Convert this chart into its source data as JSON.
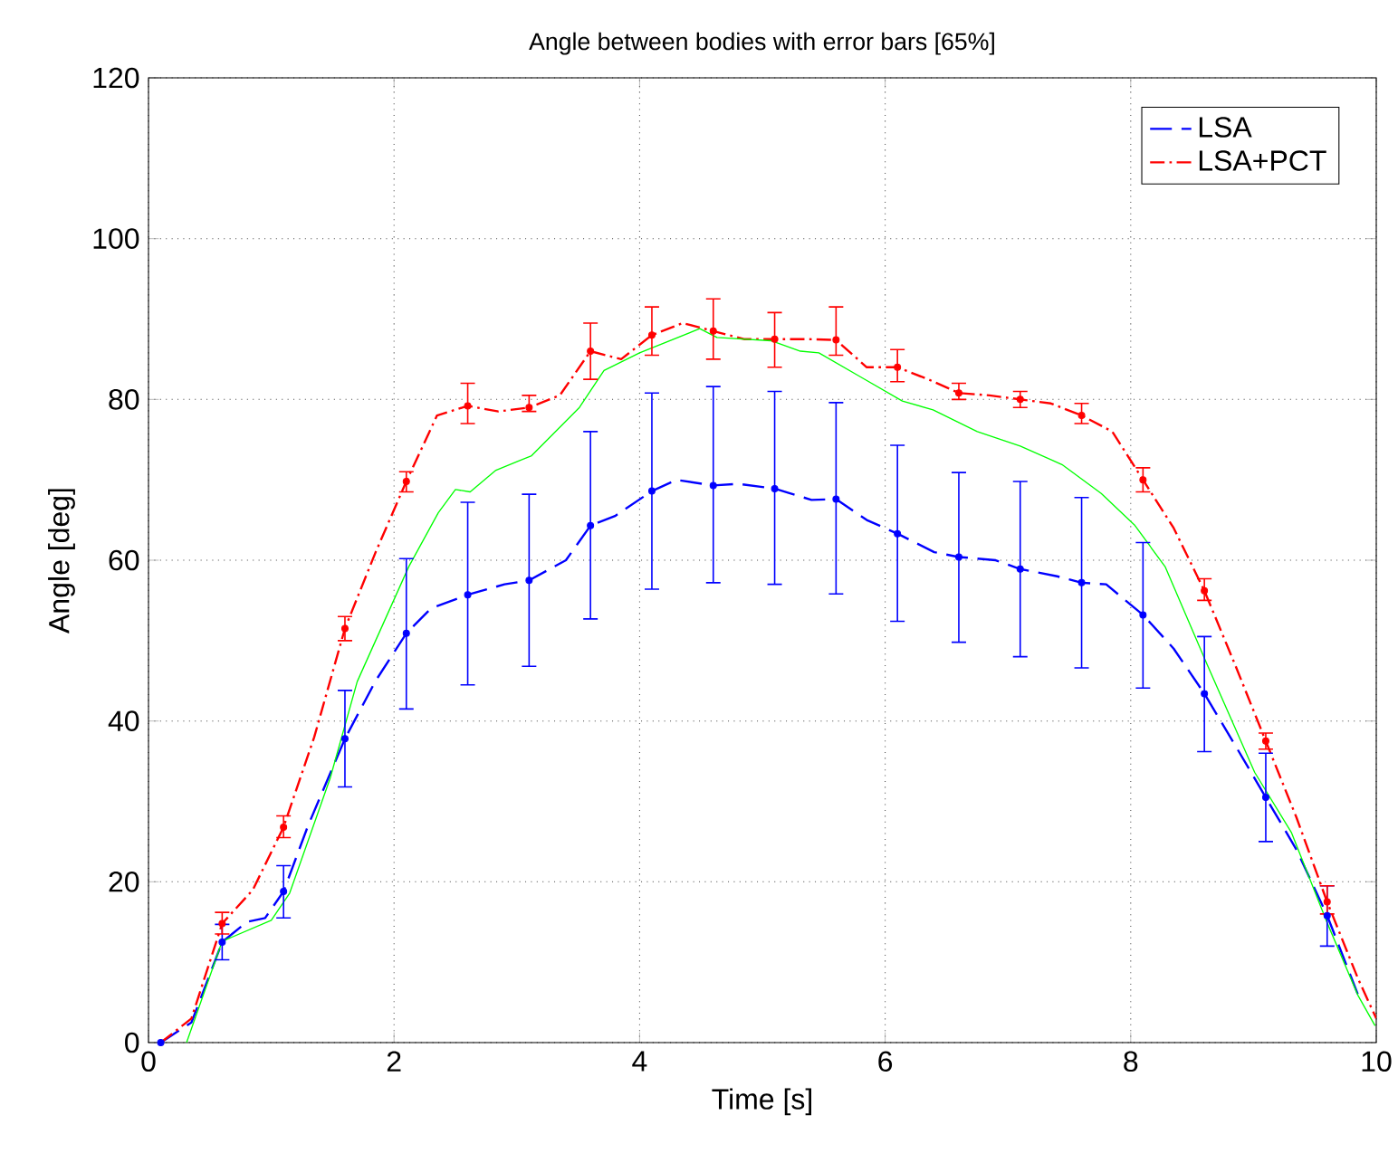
{
  "chart_data": {
    "type": "line",
    "title": "Angle between bodies with error bars [65%]",
    "xlabel": "Time [s]",
    "ylabel": "Angle [deg]",
    "xlim": [
      0,
      10
    ],
    "ylim": [
      0,
      120
    ],
    "xticks": [
      0,
      2,
      4,
      6,
      8,
      10
    ],
    "yticks": [
      0,
      20,
      40,
      60,
      80,
      100,
      120
    ],
    "grid": true,
    "legend": "top right",
    "series": [
      {
        "name": "LSA",
        "color": "#0000ff",
        "line_style": "dashed",
        "marker": "none",
        "x": [
          0.1,
          0.35,
          0.6,
          0.8,
          0.95,
          1.1,
          1.3,
          1.6,
          1.85,
          2.1,
          2.3,
          2.6,
          2.9,
          3.1,
          3.4,
          3.6,
          3.8,
          4.1,
          4.3,
          4.6,
          4.8,
          5.1,
          5.4,
          5.6,
          5.85,
          6.1,
          6.4,
          6.6,
          6.9,
          7.1,
          7.4,
          7.6,
          7.8,
          8.1,
          8.35,
          8.6,
          8.85,
          9.1,
          9.35,
          9.6,
          9.85
        ],
        "values": [
          0,
          2.5,
          12.5,
          15,
          15.5,
          18.8,
          27,
          37.8,
          45,
          50.9,
          54,
          55.7,
          57,
          57.5,
          60,
          64.3,
          65.5,
          68.6,
          70,
          69.3,
          69.5,
          68.9,
          67.5,
          67.6,
          65,
          63.3,
          61,
          60.4,
          60,
          58.9,
          58,
          57.2,
          57,
          53.2,
          49,
          43.4,
          37,
          30.5,
          24,
          15.8,
          6
        ]
      },
      {
        "name": "LSA+PCT",
        "color": "#ff0000",
        "line_style": "dashdot",
        "marker": "none",
        "x": [
          0.1,
          0.35,
          0.6,
          0.85,
          1.1,
          1.35,
          1.6,
          1.85,
          2.1,
          2.35,
          2.6,
          2.85,
          3.1,
          3.35,
          3.6,
          3.85,
          4.1,
          4.35,
          4.6,
          4.85,
          5.1,
          5.35,
          5.6,
          5.85,
          6.1,
          6.35,
          6.6,
          6.85,
          7.1,
          7.35,
          7.6,
          7.85,
          8.1,
          8.35,
          8.6,
          8.85,
          9.1,
          9.35,
          9.6,
          9.85,
          10
        ],
        "values": [
          0,
          3,
          14.8,
          19,
          26.8,
          38,
          51.5,
          61,
          69.8,
          78,
          79.2,
          78.5,
          79,
          80.5,
          86,
          85,
          88,
          89.5,
          88.5,
          87.5,
          87.5,
          87.5,
          87.4,
          84,
          84,
          82.5,
          80.8,
          80.5,
          80,
          79.5,
          78,
          76,
          70,
          64,
          56.2,
          47,
          37.5,
          28,
          17.5,
          8,
          3
        ]
      },
      {
        "color": "#00ff00",
        "line_style": "solid",
        "marker": "none",
        "x": [
          0.31,
          0.6,
          1.0,
          1.15,
          1.48,
          1.7,
          2.12,
          2.36,
          2.5,
          2.62,
          2.83,
          3.12,
          3.51,
          3.71,
          4.0,
          4.49,
          4.63,
          5.07,
          5.31,
          5.46,
          5.8,
          6.14,
          6.39,
          6.75,
          7.1,
          7.44,
          7.76,
          8.03,
          8.28,
          8.62,
          9.01,
          9.31,
          9.6,
          9.85,
          9.99
        ],
        "values": [
          0,
          12.6,
          15.2,
          18.6,
          32.9,
          44.9,
          59.2,
          65.9,
          68.8,
          68.5,
          71.2,
          73,
          79,
          83.6,
          85.8,
          88.8,
          87.7,
          87.3,
          86,
          85.8,
          82.8,
          79.8,
          78.7,
          76,
          74.2,
          71.9,
          68.3,
          64.4,
          59.2,
          47.1,
          33.6,
          26.1,
          14.9,
          5.9,
          2.1
        ]
      },
      {
        "type": "scatter",
        "color": "#0000ff",
        "marker": "circle",
        "x": [
          0.1,
          0.6,
          1.1,
          1.6,
          2.1,
          2.6,
          3.1,
          3.6,
          4.1,
          4.6,
          5.1,
          5.6,
          6.1,
          6.6,
          7.1,
          7.6,
          8.1,
          8.6,
          9.1,
          9.6
        ],
        "values": [
          0,
          12.5,
          18.8,
          37.8,
          50.9,
          55.7,
          57.5,
          64.3,
          68.6,
          69.3,
          68.9,
          67.6,
          63.3,
          60.4,
          58.9,
          57.2,
          53.2,
          43.4,
          30.5,
          15.8
        ],
        "errors": [
          null,
          [
            10.3,
            14.7
          ],
          [
            15.5,
            22
          ],
          [
            31.8,
            43.8
          ],
          [
            41.5,
            60.2
          ],
          [
            44.5,
            67.2
          ],
          [
            46.8,
            68.2
          ],
          [
            52.7,
            76
          ],
          [
            56.4,
            80.8
          ],
          [
            57.2,
            81.6
          ],
          [
            57,
            81
          ],
          [
            55.8,
            79.6
          ],
          [
            52.4,
            74.3
          ],
          [
            49.8,
            70.9
          ],
          [
            48,
            69.8
          ],
          [
            46.6,
            67.8
          ],
          [
            44.1,
            62.2
          ],
          [
            36.2,
            50.5
          ],
          [
            25,
            36
          ],
          [
            12,
            19.5
          ]
        ]
      },
      {
        "type": "scatter",
        "color": "#ff0000",
        "marker": "circle",
        "x": [
          0.6,
          1.1,
          1.6,
          2.1,
          2.6,
          3.1,
          3.6,
          4.1,
          4.6,
          5.1,
          5.6,
          6.1,
          6.6,
          7.1,
          7.6,
          8.1,
          8.6,
          9.1,
          9.6
        ],
        "values": [
          14.8,
          26.8,
          51.5,
          69.8,
          79.2,
          79,
          86,
          88,
          88.5,
          87.5,
          87.4,
          84,
          80.8,
          80,
          78,
          70,
          56.2,
          37.5,
          17.5
        ],
        "errors": [
          [
            13.5,
            16.2
          ],
          [
            25.5,
            28.2
          ],
          [
            50,
            53
          ],
          [
            68.5,
            71
          ],
          [
            77,
            82
          ],
          [
            78.5,
            80.5
          ],
          [
            82.5,
            89.5
          ],
          [
            85.5,
            91.5
          ],
          [
            85,
            92.5
          ],
          [
            84,
            90.8
          ],
          [
            85.5,
            91.5
          ],
          [
            82.2,
            86.2
          ],
          [
            80,
            82
          ],
          [
            79,
            81
          ],
          [
            77,
            79.5
          ],
          [
            68.5,
            71.5
          ],
          [
            55,
            57.7
          ],
          [
            36.5,
            38.5
          ],
          [
            16,
            19.5
          ]
        ]
      }
    ]
  }
}
